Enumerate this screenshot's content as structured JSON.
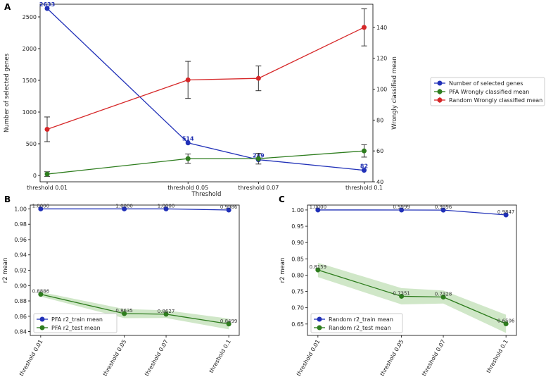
{
  "colors": {
    "blue": "#2131b8",
    "green": "#2e7d1e",
    "red": "#d62728",
    "band": "#a9d39a"
  },
  "chart_data": [
    {
      "id": "A",
      "panel_label": "A",
      "type": "line",
      "categories": [
        "threshold 0.01",
        "threshold 0.05",
        "threshold 0.07",
        "threshold 0.1"
      ],
      "x": [
        0.01,
        0.05,
        0.07,
        0.1
      ],
      "xlabel": "Threshold",
      "ylabel": "Number of selected genes",
      "y2label": "Wrongly classified mean",
      "ylim": [
        -100,
        2700
      ],
      "y2lim": [
        40,
        155
      ],
      "yticks": [
        0,
        500,
        1000,
        1500,
        2000,
        2500
      ],
      "y2ticks": [
        40,
        60,
        80,
        100,
        120,
        140
      ],
      "legend_position": "outside-right",
      "series": [
        {
          "name": "Number of selected genes",
          "axis": "left",
          "values": [
            2633,
            514,
            249,
            82
          ],
          "labels": [
            "2633",
            "514",
            "249",
            "82"
          ]
        },
        {
          "name": "PFA Wrongly classified mean",
          "axis": "right",
          "values": [
            45,
            55,
            55,
            60
          ],
          "err": [
            1.5,
            3,
            3.5,
            4
          ]
        },
        {
          "name": "Random Wrongly classified mean",
          "axis": "right",
          "values": [
            74,
            106,
            107,
            140
          ],
          "err": [
            8,
            12,
            8,
            12
          ]
        }
      ]
    },
    {
      "id": "B",
      "panel_label": "B",
      "type": "line",
      "categories": [
        "threshold 0.01",
        "threshold 0.05",
        "threshold 0.07",
        "threshold 0.1"
      ],
      "x": [
        0.01,
        0.05,
        0.07,
        0.1
      ],
      "xlabel": "",
      "ylabel": "r2 mean",
      "ylim": [
        0.835,
        1.005
      ],
      "yticks": [
        0.84,
        0.86,
        0.88,
        0.9,
        0.92,
        0.94,
        0.96,
        0.98,
        1.0
      ],
      "yticklabels": [
        "0.84",
        "0.86",
        "0.88",
        "0.90",
        "0.92",
        "0.94",
        "0.96",
        "0.98",
        "1.00"
      ],
      "legend_position": "lower-left",
      "series": [
        {
          "name": "PFA r2_train mean",
          "values": [
            1.0,
            1.0,
            1.0,
            0.9986
          ],
          "labels": [
            "1.0000",
            "1.0000",
            "1.0000",
            "0.9986"
          ]
        },
        {
          "name": "PFA r2_test mean",
          "values": [
            0.8886,
            0.8635,
            0.8627,
            0.8499
          ],
          "labels": [
            "0.8886",
            "0.8635",
            "0.8627",
            "0.8499"
          ],
          "band": [
            0.003,
            0.006,
            0.005,
            0.007
          ]
        }
      ]
    },
    {
      "id": "C",
      "panel_label": "C",
      "type": "line",
      "categories": [
        "threshold 0.01",
        "threshold 0.05",
        "threshold 0.07",
        "threshold 0.1"
      ],
      "x": [
        0.01,
        0.05,
        0.07,
        0.1
      ],
      "xlabel": "",
      "ylabel": "r2 mean",
      "ylim": [
        0.615,
        1.015
      ],
      "yticks": [
        0.65,
        0.7,
        0.75,
        0.8,
        0.85,
        0.9,
        0.95,
        1.0
      ],
      "yticklabels": [
        "0.65",
        "0.70",
        "0.75",
        "0.80",
        "0.85",
        "0.90",
        "0.95",
        "1.00"
      ],
      "legend_position": "lower-left",
      "series": [
        {
          "name": "Random r2_train mean",
          "values": [
            1.0,
            0.9999,
            0.9996,
            0.9847
          ],
          "labels": [
            "1.0000",
            "0.9999",
            "0.9996",
            "0.9847"
          ]
        },
        {
          "name": "Random r2_test mean",
          "values": [
            0.8159,
            0.7351,
            0.7328,
            0.6506
          ],
          "labels": [
            "0.8159",
            "0.7351",
            "0.7328",
            "0.6506"
          ],
          "band": [
            0.022,
            0.025,
            0.02,
            0.028
          ]
        }
      ]
    }
  ]
}
